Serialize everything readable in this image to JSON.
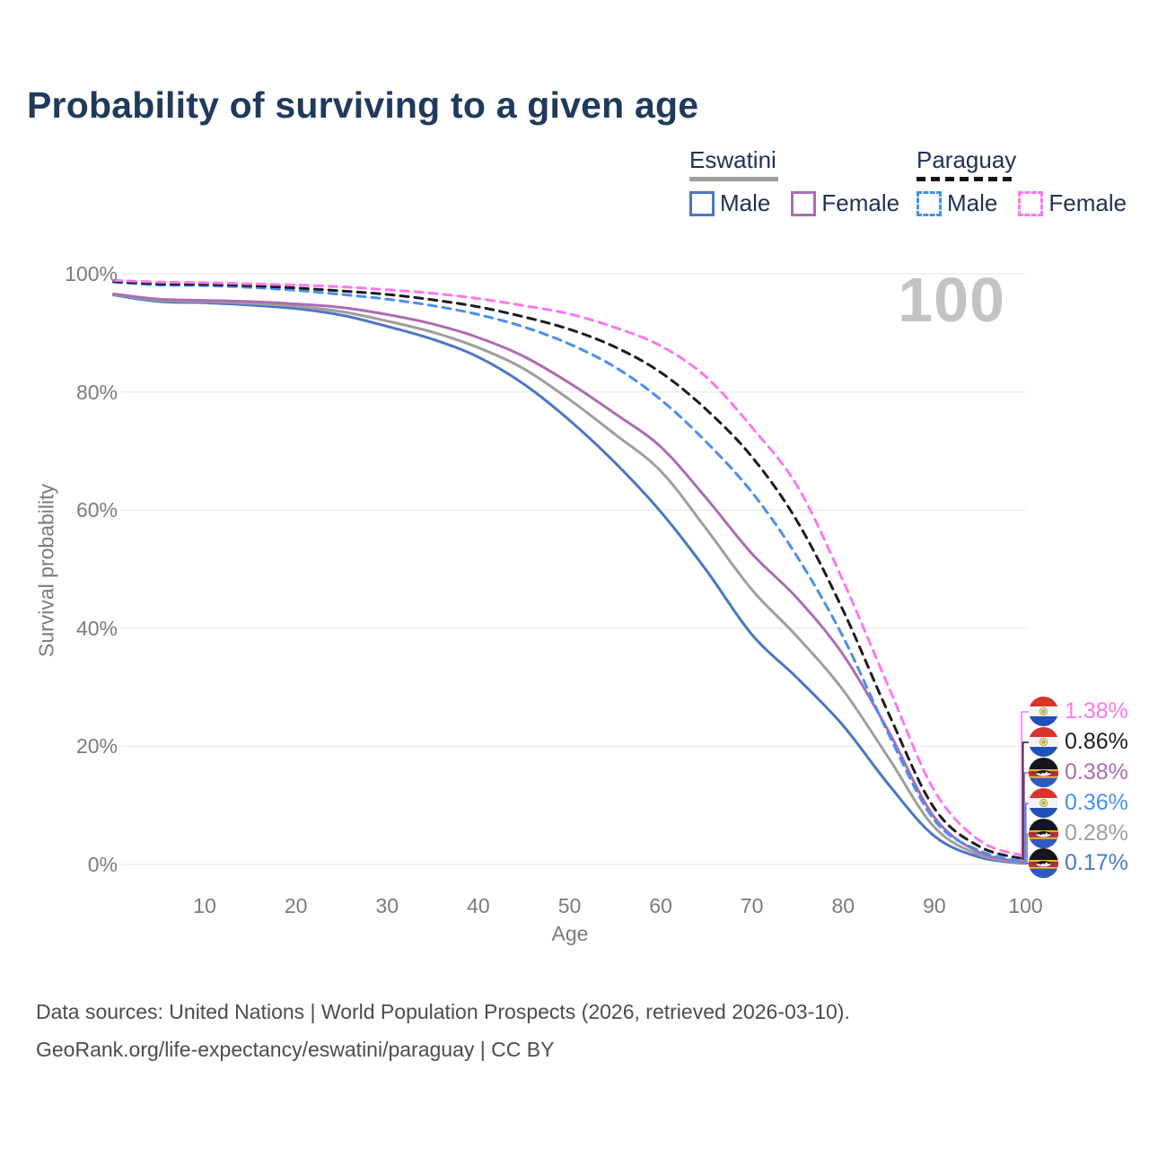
{
  "title": "Probability of surviving to a given age",
  "watermark": "100",
  "legend": {
    "groups": [
      {
        "name": "Eswatini",
        "line_style": "solid",
        "underline_color": "#9e9e9e",
        "items": [
          {
            "label": "Male",
            "color": "#4a77c4"
          },
          {
            "label": "Female",
            "color": "#ad6cb3"
          }
        ]
      },
      {
        "name": "Paraguay",
        "line_style": "dashed",
        "underline_color": "#141414",
        "items": [
          {
            "label": "Male",
            "color": "#4a8ef0"
          },
          {
            "label": "Female",
            "color": "#fc77f2"
          }
        ]
      }
    ]
  },
  "chart_data": {
    "type": "line",
    "title": "Probability of surviving to a given age",
    "xlabel": "Age",
    "ylabel": "Survival probability",
    "xlim": [
      0,
      100
    ],
    "ylim": [
      0,
      100
    ],
    "grid": "horizontal",
    "x_ticks": [
      10,
      20,
      30,
      40,
      50,
      60,
      70,
      80,
      90,
      100
    ],
    "y_ticks": [
      0,
      20,
      40,
      60,
      80,
      100
    ],
    "y_tick_labels": [
      "0%",
      "20%",
      "40%",
      "60%",
      "80%",
      "100%"
    ],
    "x": [
      0,
      5,
      10,
      15,
      20,
      25,
      30,
      35,
      40,
      45,
      50,
      55,
      60,
      65,
      70,
      75,
      80,
      85,
      90,
      95,
      100
    ],
    "series": [
      {
        "name": "Eswatini Male",
        "country": "Eswatini",
        "sex": "male",
        "color": "#4a77c4",
        "dash": false,
        "flag": "eswatini",
        "end_label": "0.17%",
        "values": [
          96.4,
          95.3,
          95.1,
          94.7,
          94.1,
          93.0,
          91.1,
          88.9,
          85.9,
          81.3,
          75.2,
          68.0,
          59.7,
          49.8,
          38.9,
          31.5,
          23.5,
          13.5,
          4.8,
          1.2,
          0.17
        ]
      },
      {
        "name": "Eswatini",
        "country": "Eswatini",
        "sex": "both",
        "color": "#9e9e9e",
        "dash": false,
        "flag": "eswatini",
        "end_label": "0.28%",
        "values": [
          96.5,
          95.5,
          95.3,
          95.0,
          94.5,
          93.6,
          92.0,
          90.1,
          87.5,
          83.9,
          78.7,
          72.8,
          66.6,
          56.8,
          46.5,
          38.5,
          29.5,
          18.0,
          6.3,
          1.6,
          0.28
        ]
      },
      {
        "name": "Eswatini Female",
        "country": "Eswatini",
        "sex": "female",
        "color": "#ad6cb3",
        "dash": false,
        "flag": "eswatini",
        "end_label": "0.38%",
        "values": [
          96.6,
          95.7,
          95.5,
          95.3,
          94.9,
          94.3,
          93.1,
          91.5,
          89.2,
          86.0,
          81.5,
          76.3,
          70.7,
          62.0,
          52.6,
          45.0,
          35.5,
          22.5,
          8.0,
          2.0,
          0.38
        ]
      },
      {
        "name": "Paraguay Male",
        "country": "Paraguay",
        "sex": "male",
        "color": "#4a8ef0",
        "dash": true,
        "flag": "paraguay",
        "end_label": "0.36%",
        "values": [
          98.6,
          98.1,
          98.0,
          97.7,
          97.2,
          96.5,
          95.7,
          94.6,
          93.1,
          91.0,
          88.1,
          84.2,
          78.7,
          71.5,
          63.0,
          52.0,
          38.5,
          22.0,
          7.5,
          2.3,
          0.36
        ]
      },
      {
        "name": "Paraguay",
        "country": "Paraguay",
        "sex": "both",
        "color": "#1c1c1c",
        "dash": true,
        "flag": "paraguay",
        "end_label": "0.86%",
        "values": [
          98.7,
          98.3,
          98.2,
          98.0,
          97.6,
          97.1,
          96.5,
          95.6,
          94.4,
          92.7,
          90.6,
          87.6,
          83.3,
          77.0,
          69.0,
          58.0,
          43.0,
          25.5,
          9.5,
          3.0,
          0.86
        ]
      },
      {
        "name": "Paraguay Female",
        "country": "Paraguay",
        "sex": "female",
        "color": "#fc77f2",
        "dash": true,
        "flag": "paraguay",
        "end_label": "1.38%",
        "values": [
          98.9,
          98.6,
          98.5,
          98.3,
          98.1,
          97.8,
          97.3,
          96.7,
          95.8,
          94.6,
          93.2,
          90.9,
          87.8,
          82.5,
          74.0,
          64.0,
          48.0,
          30.0,
          12.5,
          4.0,
          1.38
        ]
      }
    ]
  },
  "footer": {
    "line1": "Data sources: United Nations | World Population Prospects (2026, retrieved 2026-03-10).",
    "line2": "GeoRank.org/life-expectancy/eswatini/paraguay | CC BY"
  }
}
